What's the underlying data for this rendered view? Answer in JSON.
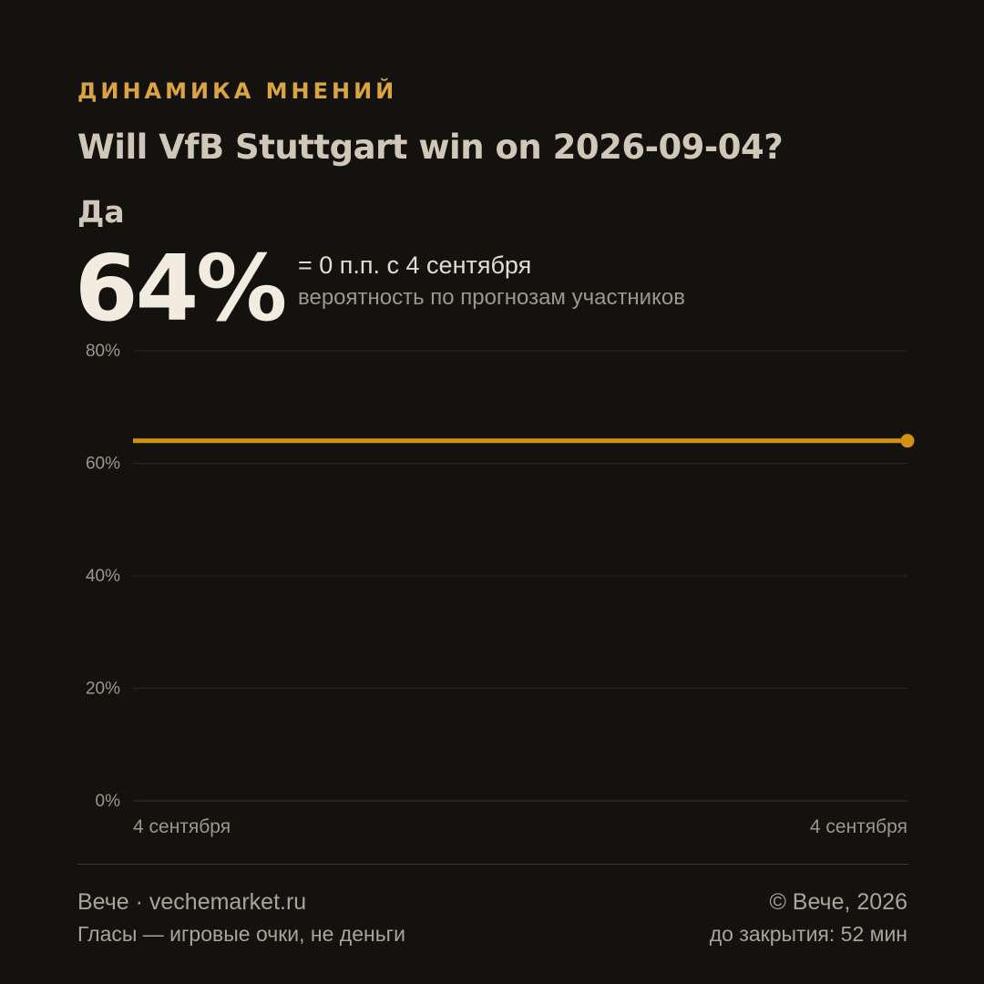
{
  "header": {
    "eyebrow": "ДИНАМИКА МНЕНИЙ",
    "question": "Will VfB Stuttgart win on 2026-09-04?",
    "outcome": "Да",
    "percent": "64%",
    "change": "= 0 п.п. с 4 сентября",
    "subtitle": "вероятность по прогнозам участников"
  },
  "chart_data": {
    "type": "line",
    "title": "",
    "xlabel": "",
    "ylabel": "",
    "ylim": [
      0,
      80
    ],
    "y_ticks": [
      "0%",
      "20%",
      "40%",
      "60%",
      "80%"
    ],
    "x_tick_labels": [
      "4 сентября",
      "4 сентября"
    ],
    "grid": true,
    "series": [
      {
        "values": [
          64,
          64
        ],
        "color": "#d4900f"
      }
    ]
  },
  "footer": {
    "brand": "Вече · vechemarket.ru",
    "disclaimer": "Гласы — игровые очки, не деньги",
    "copyright": "© Вече, 2026",
    "countdown": "до закрытия: 52 мин"
  },
  "colors": {
    "background": "#14120f",
    "accent": "#d9a441",
    "line": "#d4900f"
  }
}
